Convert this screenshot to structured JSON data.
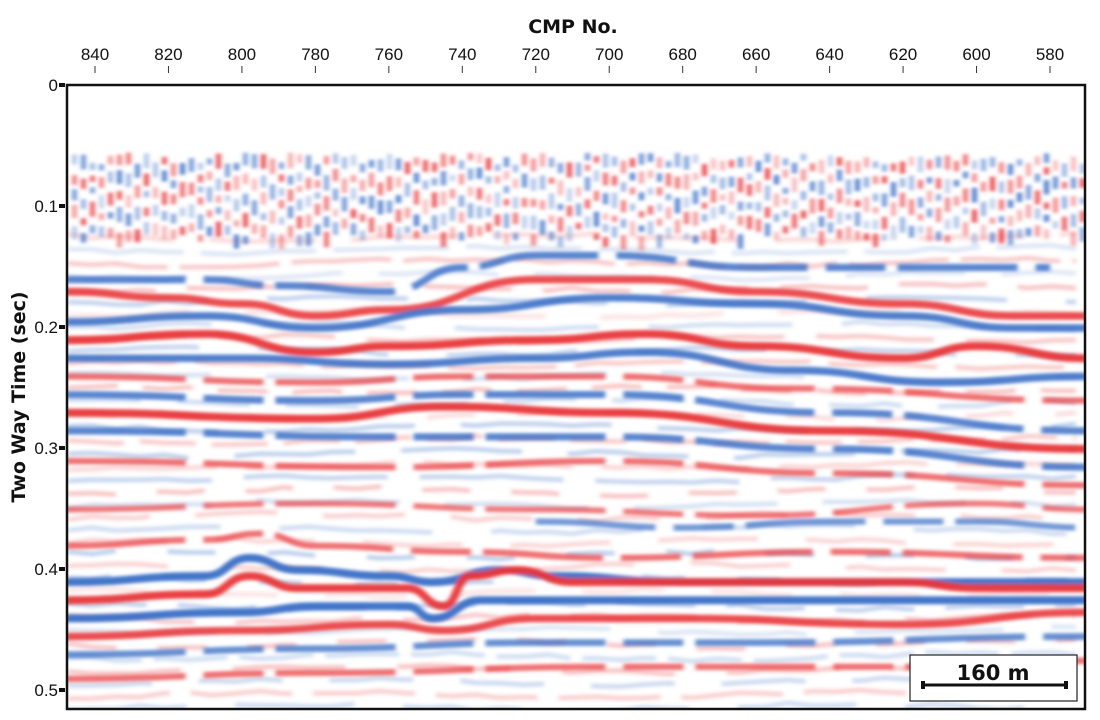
{
  "chart_data": {
    "type": "heatmap",
    "subtype": "seismic-section",
    "title": "CMP No.",
    "xlabel": "CMP No.",
    "ylabel": "Two Way Time (sec)",
    "xlim": [
      848,
      570
    ],
    "ylim": [
      0,
      0.515
    ],
    "xticks": [
      840,
      820,
      800,
      780,
      760,
      740,
      720,
      700,
      680,
      660,
      640,
      620,
      600,
      580
    ],
    "yticks": [
      0,
      0.1,
      0.2,
      0.3,
      0.4,
      0.5
    ],
    "ytick_labels": [
      "0",
      "0.1",
      "0.2",
      "0.3",
      "0.4",
      "0.5"
    ],
    "colors": {
      "positive": "#e8373a",
      "negative": "#3a6fc6",
      "background": "#ffffff"
    },
    "noise_zone_sec": [
      0.055,
      0.125
    ],
    "reflectors": [
      {
        "polarity": "negative",
        "strength": 0.8,
        "points": [
          [
            848,
            0.16
          ],
          [
            810,
            0.16
          ],
          [
            790,
            0.165
          ],
          [
            760,
            0.17
          ],
          [
            740,
            0.15
          ],
          [
            720,
            0.14
          ],
          [
            700,
            0.14
          ],
          [
            660,
            0.15
          ],
          [
            620,
            0.15
          ],
          [
            580,
            0.15
          ]
        ]
      },
      {
        "polarity": "positive",
        "strength": 0.9,
        "points": [
          [
            848,
            0.17
          ],
          [
            820,
            0.175
          ],
          [
            800,
            0.18
          ],
          [
            780,
            0.19
          ],
          [
            760,
            0.185
          ],
          [
            720,
            0.16
          ],
          [
            690,
            0.16
          ],
          [
            660,
            0.17
          ],
          [
            620,
            0.18
          ],
          [
            590,
            0.19
          ],
          [
            570,
            0.19
          ]
        ]
      },
      {
        "polarity": "negative",
        "strength": 0.9,
        "points": [
          [
            848,
            0.195
          ],
          [
            810,
            0.19
          ],
          [
            780,
            0.2
          ],
          [
            740,
            0.185
          ],
          [
            700,
            0.175
          ],
          [
            660,
            0.18
          ],
          [
            620,
            0.19
          ],
          [
            590,
            0.2
          ],
          [
            570,
            0.2
          ]
        ]
      },
      {
        "polarity": "positive",
        "strength": 1.0,
        "points": [
          [
            848,
            0.21
          ],
          [
            810,
            0.205
          ],
          [
            780,
            0.22
          ],
          [
            760,
            0.215
          ],
          [
            720,
            0.21
          ],
          [
            690,
            0.205
          ],
          [
            660,
            0.215
          ],
          [
            620,
            0.225
          ],
          [
            600,
            0.215
          ],
          [
            570,
            0.225
          ]
        ]
      },
      {
        "polarity": "negative",
        "strength": 0.9,
        "points": [
          [
            848,
            0.225
          ],
          [
            800,
            0.225
          ],
          [
            760,
            0.23
          ],
          [
            720,
            0.225
          ],
          [
            690,
            0.22
          ],
          [
            650,
            0.235
          ],
          [
            610,
            0.245
          ],
          [
            570,
            0.24
          ]
        ]
      },
      {
        "polarity": "positive",
        "strength": 0.6,
        "points": [
          [
            848,
            0.24
          ],
          [
            780,
            0.245
          ],
          [
            740,
            0.24
          ],
          [
            700,
            0.24
          ],
          [
            650,
            0.25
          ],
          [
            570,
            0.26
          ]
        ]
      },
      {
        "polarity": "negative",
        "strength": 0.8,
        "points": [
          [
            848,
            0.255
          ],
          [
            780,
            0.26
          ],
          [
            740,
            0.255
          ],
          [
            700,
            0.255
          ],
          [
            640,
            0.27
          ],
          [
            570,
            0.285
          ]
        ]
      },
      {
        "polarity": "positive",
        "strength": 1.0,
        "points": [
          [
            848,
            0.27
          ],
          [
            780,
            0.275
          ],
          [
            745,
            0.265
          ],
          [
            700,
            0.27
          ],
          [
            640,
            0.285
          ],
          [
            570,
            0.3
          ]
        ]
      },
      {
        "polarity": "negative",
        "strength": 0.8,
        "points": [
          [
            848,
            0.285
          ],
          [
            760,
            0.29
          ],
          [
            700,
            0.29
          ],
          [
            640,
            0.3
          ],
          [
            570,
            0.315
          ]
        ]
      },
      {
        "polarity": "positive",
        "strength": 0.6,
        "points": [
          [
            848,
            0.31
          ],
          [
            760,
            0.315
          ],
          [
            700,
            0.31
          ],
          [
            640,
            0.32
          ],
          [
            570,
            0.33
          ]
        ]
      },
      {
        "polarity": "positive",
        "strength": 0.5,
        "points": [
          [
            848,
            0.35
          ],
          [
            780,
            0.345
          ],
          [
            720,
            0.35
          ],
          [
            660,
            0.355
          ],
          [
            600,
            0.345
          ],
          [
            570,
            0.35
          ]
        ]
      },
      {
        "polarity": "negative",
        "strength": 0.6,
        "points": [
          [
            720,
            0.36
          ],
          [
            680,
            0.365
          ],
          [
            640,
            0.36
          ],
          [
            600,
            0.36
          ],
          [
            570,
            0.365
          ]
        ]
      },
      {
        "polarity": "positive",
        "strength": 0.6,
        "points": [
          [
            848,
            0.38
          ],
          [
            810,
            0.375
          ],
          [
            795,
            0.37
          ],
          [
            780,
            0.38
          ],
          [
            740,
            0.385
          ],
          [
            700,
            0.39
          ],
          [
            640,
            0.385
          ],
          [
            570,
            0.39
          ]
        ]
      },
      {
        "polarity": "negative",
        "strength": 1.0,
        "points": [
          [
            848,
            0.41
          ],
          [
            810,
            0.405
          ],
          [
            798,
            0.39
          ],
          [
            785,
            0.4
          ],
          [
            760,
            0.405
          ],
          [
            748,
            0.41
          ],
          [
            730,
            0.4
          ],
          [
            715,
            0.405
          ],
          [
            680,
            0.41
          ],
          [
            620,
            0.41
          ],
          [
            570,
            0.41
          ]
        ]
      },
      {
        "polarity": "positive",
        "strength": 1.0,
        "points": [
          [
            848,
            0.425
          ],
          [
            810,
            0.42
          ],
          [
            798,
            0.405
          ],
          [
            785,
            0.415
          ],
          [
            755,
            0.415
          ],
          [
            745,
            0.43
          ],
          [
            738,
            0.405
          ],
          [
            725,
            0.4
          ],
          [
            710,
            0.41
          ],
          [
            680,
            0.41
          ],
          [
            620,
            0.41
          ],
          [
            600,
            0.415
          ],
          [
            570,
            0.415
          ]
        ]
      },
      {
        "polarity": "negative",
        "strength": 1.0,
        "points": [
          [
            848,
            0.44
          ],
          [
            800,
            0.435
          ],
          [
            780,
            0.43
          ],
          [
            755,
            0.43
          ],
          [
            748,
            0.44
          ],
          [
            735,
            0.425
          ],
          [
            700,
            0.425
          ],
          [
            640,
            0.425
          ],
          [
            600,
            0.425
          ],
          [
            570,
            0.425
          ]
        ]
      },
      {
        "polarity": "positive",
        "strength": 0.9,
        "points": [
          [
            848,
            0.455
          ],
          [
            800,
            0.45
          ],
          [
            760,
            0.445
          ],
          [
            745,
            0.45
          ],
          [
            720,
            0.44
          ],
          [
            680,
            0.44
          ],
          [
            620,
            0.445
          ],
          [
            570,
            0.435
          ]
        ]
      },
      {
        "polarity": "negative",
        "strength": 0.7,
        "points": [
          [
            848,
            0.47
          ],
          [
            780,
            0.465
          ],
          [
            720,
            0.46
          ],
          [
            660,
            0.46
          ],
          [
            570,
            0.455
          ]
        ]
      },
      {
        "polarity": "positive",
        "strength": 0.6,
        "points": [
          [
            848,
            0.49
          ],
          [
            780,
            0.485
          ],
          [
            700,
            0.48
          ],
          [
            620,
            0.48
          ],
          [
            570,
            0.475
          ]
        ]
      }
    ],
    "scale_bar": {
      "label": "160 m",
      "length_m": 160
    }
  }
}
